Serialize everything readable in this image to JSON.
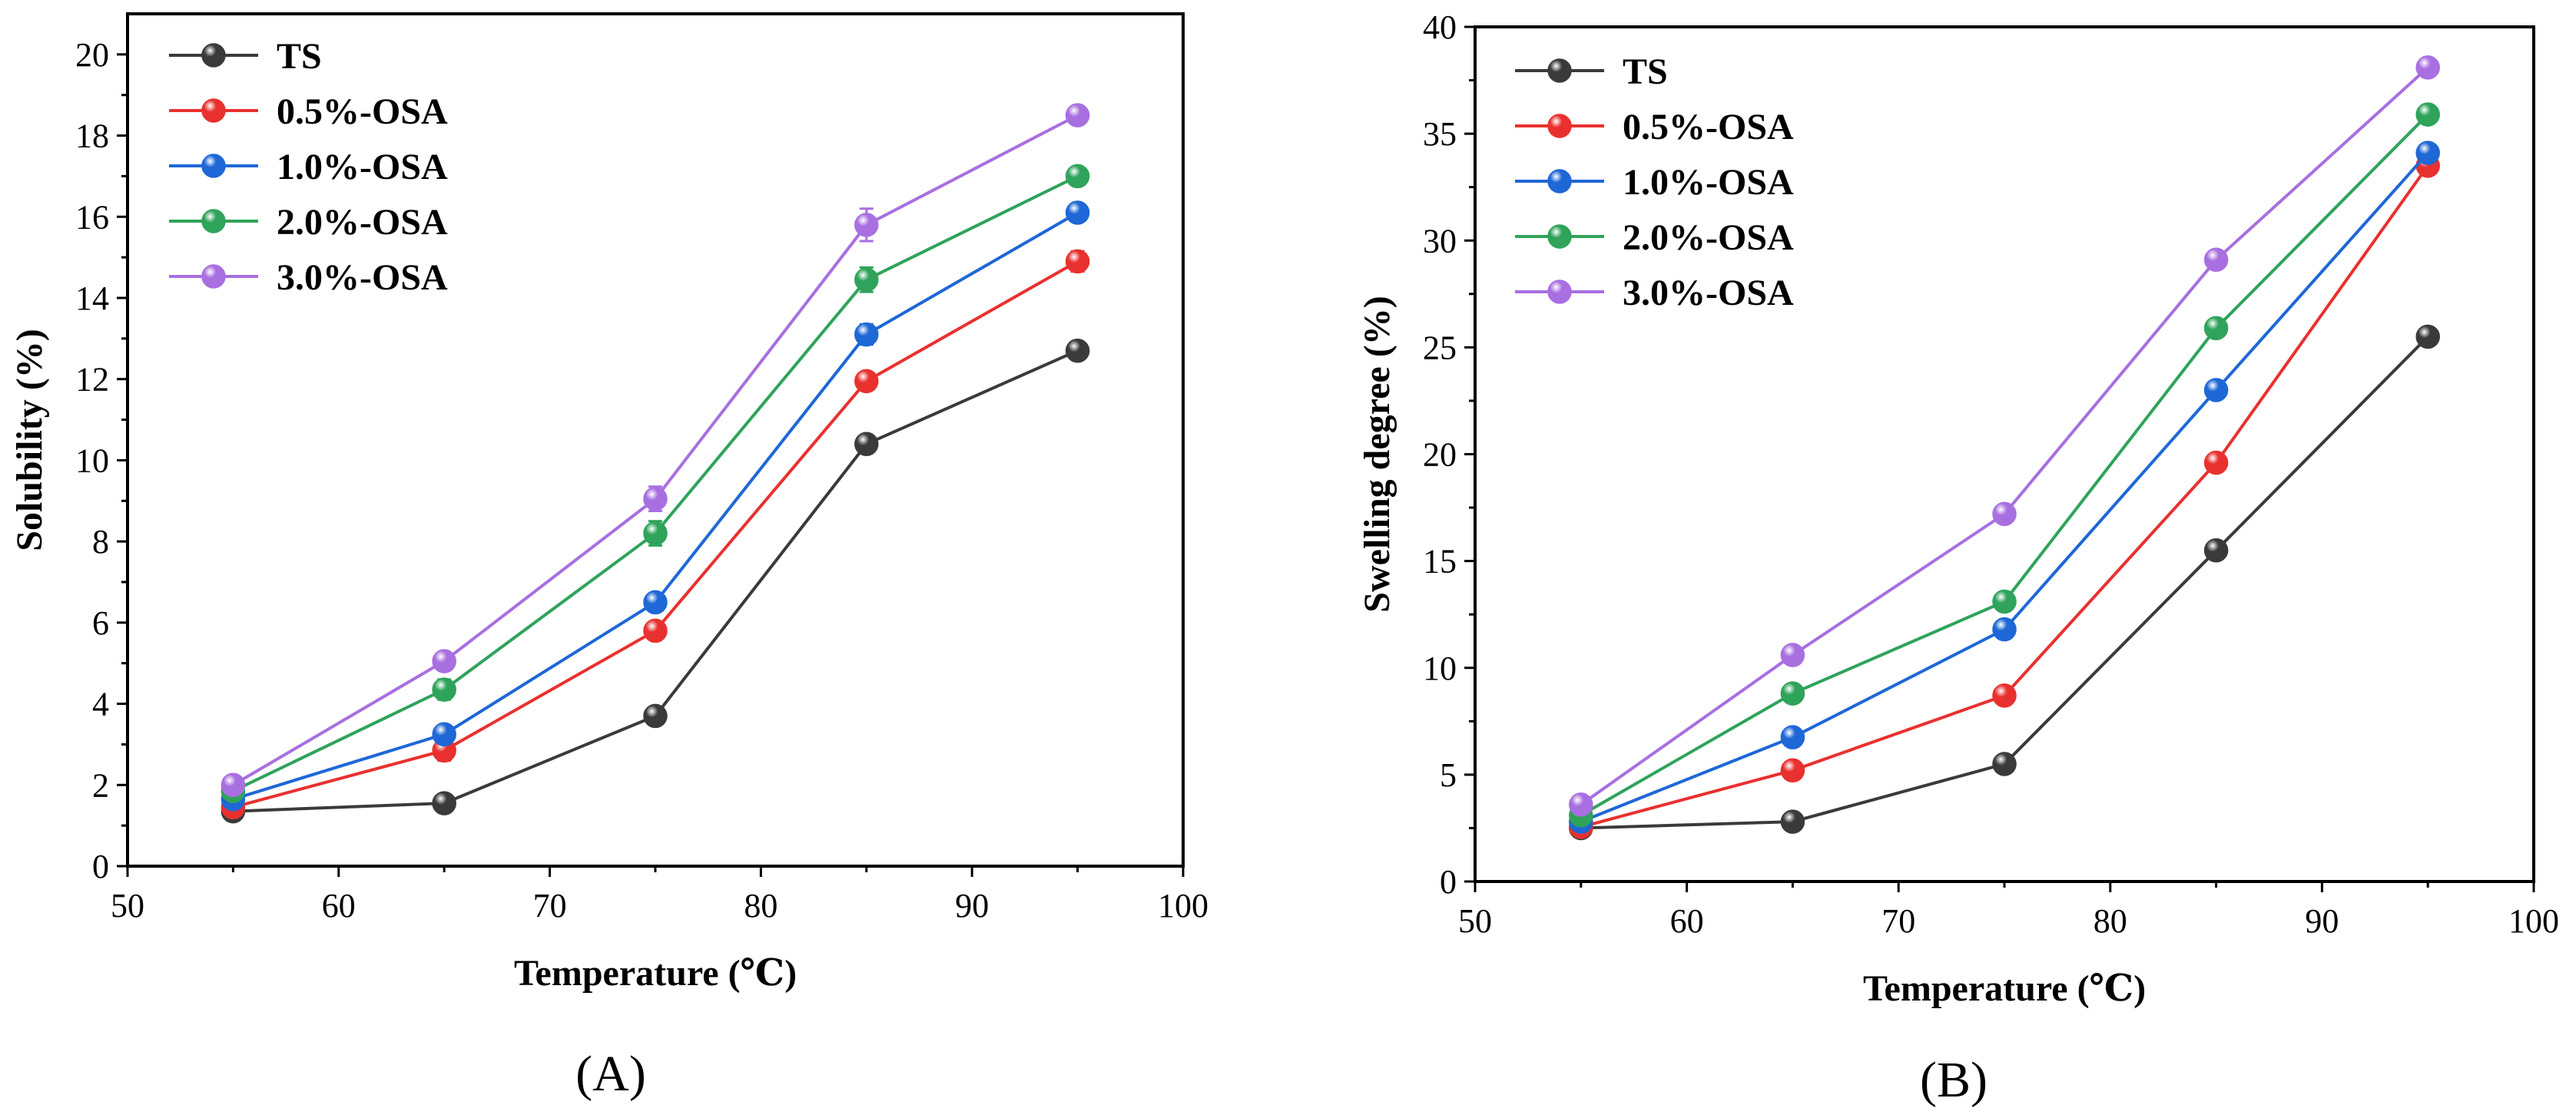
{
  "colors": {
    "TS": "#3a3a3a",
    "0.5%-OSA": "#e8312f",
    "1.0%-OSA": "#1e67d6",
    "2.0%-OSA": "#2fa35a",
    "3.0%-OSA": "#a86fe0"
  },
  "chart_data": [
    {
      "type": "line",
      "panel_label": "(A)",
      "xlabel": "Temperature (℃)",
      "ylabel": "Solubility (%)",
      "xlim": [
        50,
        100
      ],
      "ylim": [
        0,
        21
      ],
      "xticks": [
        50,
        60,
        70,
        80,
        90,
        100
      ],
      "yticks": [
        0,
        2,
        4,
        6,
        8,
        10,
        12,
        14,
        16,
        18,
        20
      ],
      "legend_position": "top-left",
      "x": [
        55,
        65,
        75,
        85,
        95
      ],
      "series": [
        {
          "name": "TS",
          "values": [
            1.35,
            1.55,
            3.7,
            10.4,
            12.7
          ],
          "errors": [
            0.1,
            0.1,
            0.15,
            0.15,
            0.15
          ]
        },
        {
          "name": "0.5%-OSA",
          "values": [
            1.45,
            2.85,
            5.8,
            11.95,
            14.9
          ],
          "errors": [
            0.1,
            0.25,
            0.2,
            0.2,
            0.25
          ]
        },
        {
          "name": "1.0%-OSA",
          "values": [
            1.65,
            3.25,
            6.5,
            13.1,
            16.1
          ],
          "errors": [
            0.1,
            0.15,
            0.15,
            0.25,
            0.2
          ]
        },
        {
          "name": "2.0%-OSA",
          "values": [
            1.85,
            4.35,
            8.2,
            14.45,
            17.0
          ],
          "errors": [
            0.1,
            0.25,
            0.3,
            0.3,
            0.15
          ]
        },
        {
          "name": "3.0%-OSA",
          "values": [
            2.0,
            5.05,
            9.05,
            15.8,
            18.5
          ],
          "errors": [
            0.1,
            0.15,
            0.3,
            0.4,
            0.15
          ]
        }
      ]
    },
    {
      "type": "line",
      "panel_label": "(B)",
      "xlabel": "Temperature (℃)",
      "ylabel": "Swelling degree (%)",
      "xlim": [
        50,
        100
      ],
      "ylim": [
        0,
        40
      ],
      "xticks": [
        50,
        60,
        70,
        80,
        90,
        100
      ],
      "yticks": [
        0,
        5,
        10,
        15,
        20,
        25,
        30,
        35,
        40
      ],
      "legend_position": "top-left",
      "x": [
        55,
        65,
        75,
        85,
        95
      ],
      "series": [
        {
          "name": "TS",
          "values": [
            2.5,
            2.8,
            5.5,
            15.5,
            25.5
          ],
          "errors": [
            0.2,
            0.2,
            0.2,
            0.2,
            0.2
          ]
        },
        {
          "name": "0.5%-OSA",
          "values": [
            2.55,
            5.2,
            8.7,
            19.6,
            33.5
          ],
          "errors": [
            0.2,
            0.2,
            0.2,
            0.2,
            0.2
          ]
        },
        {
          "name": "1.0%-OSA",
          "values": [
            2.8,
            6.75,
            11.8,
            23.0,
            34.1
          ],
          "errors": [
            0.2,
            0.2,
            0.2,
            0.2,
            0.2
          ]
        },
        {
          "name": "2.0%-OSA",
          "values": [
            3.1,
            8.8,
            13.1,
            25.9,
            35.9
          ],
          "errors": [
            0.2,
            0.2,
            0.2,
            0.2,
            0.2
          ]
        },
        {
          "name": "3.0%-OSA",
          "values": [
            3.6,
            10.6,
            17.2,
            29.1,
            38.1
          ],
          "errors": [
            0.2,
            0.2,
            0.2,
            0.2,
            0.2
          ]
        }
      ]
    }
  ]
}
